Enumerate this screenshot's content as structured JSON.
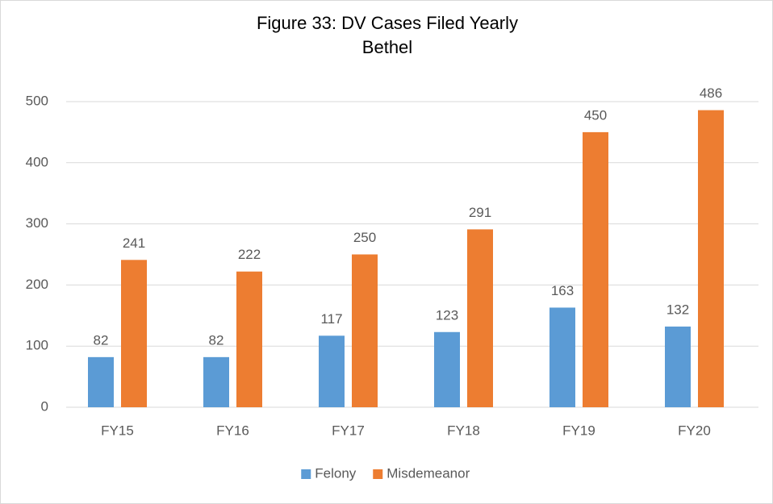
{
  "chart_data": {
    "type": "bar",
    "title": "Figure 33: DV Cases Filed Yearly",
    "subtitle": "Bethel",
    "categories": [
      "FY15",
      "FY16",
      "FY17",
      "FY18",
      "FY19",
      "FY20"
    ],
    "series": [
      {
        "name": "Felony",
        "color": "#5b9bd5",
        "values": [
          82,
          82,
          117,
          123,
          163,
          132
        ]
      },
      {
        "name": "Misdemeanor",
        "color": "#ed7d31",
        "values": [
          241,
          222,
          250,
          291,
          450,
          486
        ]
      }
    ],
    "ylim": [
      0,
      500
    ],
    "yticks": [
      0,
      100,
      200,
      300,
      400,
      500
    ],
    "grid": true,
    "legend": "bottom"
  }
}
